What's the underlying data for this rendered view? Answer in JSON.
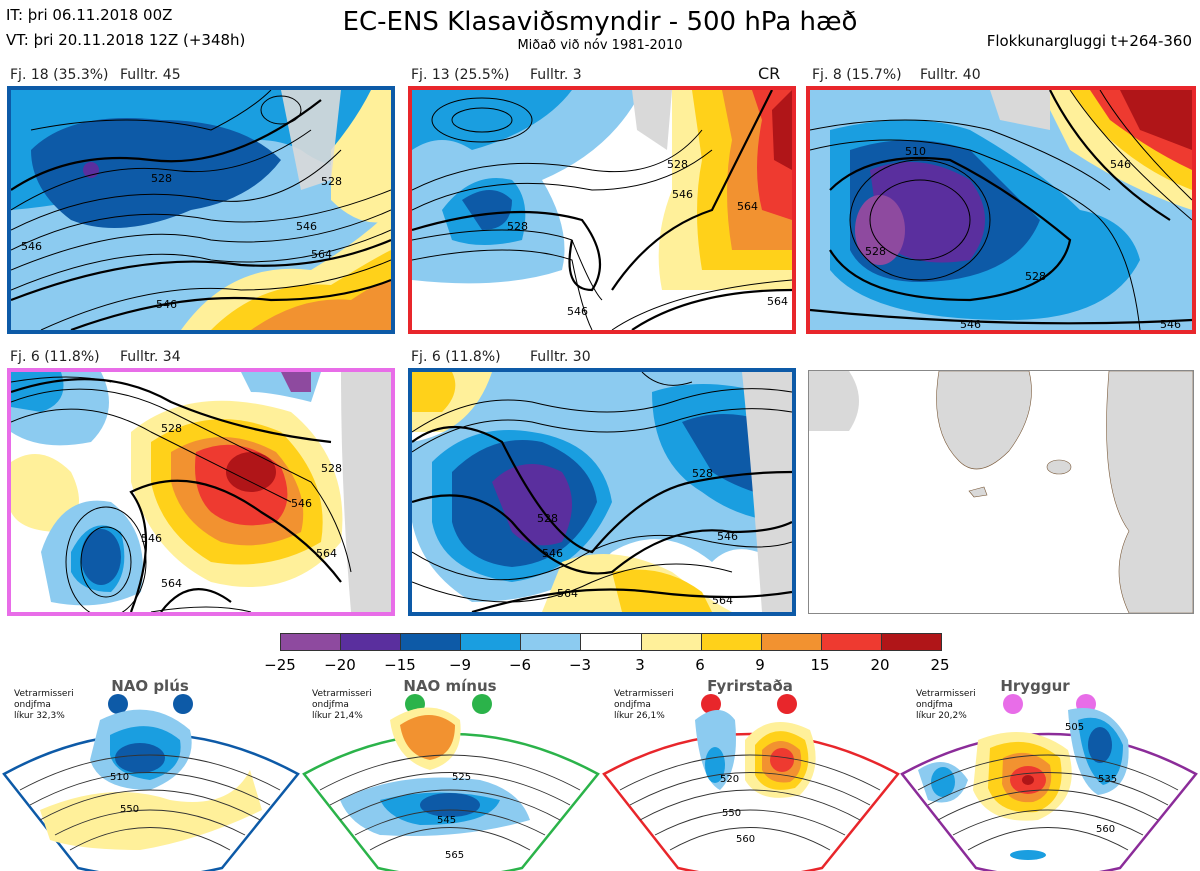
{
  "header": {
    "it": "IT: þri 06.11.2018 00Z",
    "vt": "VT: þri 20.11.2018 12Z  (+348h)",
    "title": "EC-ENS Klasaviðsmyndir - 500 hPa hæð",
    "subtitle": "Miðað við nóv 1981-2010",
    "window": "Flokkunargluggi t+264-360"
  },
  "panels": [
    {
      "count": "Fj. 18 (35.3%)",
      "rep": "Fulltr. 45",
      "border": "#0d5aa7",
      "tag": ""
    },
    {
      "count": "Fj. 13 (25.5%)",
      "rep": "Fulltr. 3",
      "border": "#e8262b",
      "tag": "CR"
    },
    {
      "count": "Fj. 8 (15.7%)",
      "rep": "Fulltr. 40",
      "border": "#e8262b",
      "tag": ""
    },
    {
      "count": "Fj. 6 (11.8%)",
      "rep": "Fulltr. 34",
      "border": "#e86de8",
      "tag": ""
    },
    {
      "count": "Fj. 6 (11.8%)",
      "rep": "Fulltr. 30",
      "border": "#0d5aa7",
      "tag": ""
    }
  ],
  "contour_labels": {
    "p1": [
      "528",
      "546",
      "564",
      "546",
      "528",
      "546"
    ],
    "p2": [
      "528",
      "546",
      "564",
      "546",
      "564",
      "528"
    ],
    "p3": [
      "510",
      "528",
      "546",
      "528",
      "546",
      "546"
    ],
    "p4": [
      "528",
      "528",
      "546",
      "564",
      "546",
      "564"
    ],
    "p5": [
      "528",
      "546",
      "528",
      "546",
      "564",
      "564"
    ]
  },
  "colorbar": {
    "colors": [
      "#8e4a9f",
      "#5a2f9e",
      "#0d5aa7",
      "#1a9ee0",
      "#8ccbf0",
      "#ffffff",
      "#fff09a",
      "#ffd11a",
      "#f29230",
      "#ee3a30",
      "#b01518"
    ],
    "ticks": [
      "−25",
      "−20",
      "−15",
      "−9",
      "−6",
      "−3",
      "3",
      "6",
      "9",
      "15",
      "20",
      "25"
    ]
  },
  "regimes": [
    {
      "title": "NAO plús",
      "info1": "Vetrarmisseri",
      "info2": "ondjfma",
      "info3": "líkur 32,3%",
      "color": "#0d5aa7",
      "labels": [
        "510",
        "550"
      ]
    },
    {
      "title": "NAO mínus",
      "info1": "Vetrarmisseri",
      "info2": "ondjfma",
      "info3": "líkur 21,4%",
      "color": "#2bb34a",
      "labels": [
        "525",
        "545",
        "565"
      ]
    },
    {
      "title": "Fyrirstaða",
      "info1": "Vetrarmisseri",
      "info2": "ondjfma",
      "info3": "líkur 26,1%",
      "color": "#e8262b",
      "labels": [
        "520",
        "550",
        "560"
      ]
    },
    {
      "title": "Hryggur",
      "info1": "Vetrarmisseri",
      "info2": "ondjfma",
      "info3": "líkur 20,2%",
      "color": "#e86de8",
      "labels": [
        "505",
        "535",
        "560"
      ]
    }
  ]
}
